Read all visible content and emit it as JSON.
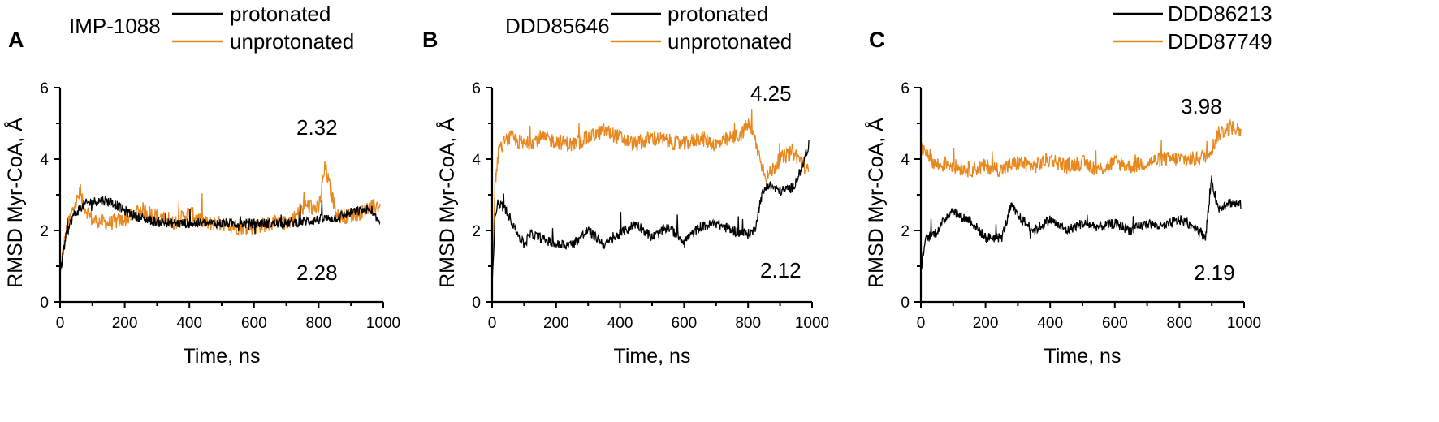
{
  "colors": {
    "series_a": "#000000",
    "series_b": "#E8871E",
    "axis": "#000000"
  },
  "chart_data": [
    {
      "type": "line",
      "panel_letter": "A",
      "compound": "IMP-1088",
      "xlabel": "Time, ns",
      "ylabel": "RMSD Myr-CoA, Å",
      "xlim": [
        0,
        1000
      ],
      "ylim": [
        0,
        6
      ],
      "xticks": [
        0,
        200,
        400,
        600,
        800,
        1000
      ],
      "yticks": [
        0,
        2,
        4,
        6
      ],
      "legend": "top-right",
      "series": [
        {
          "name": "protonated",
          "color": "#000000",
          "annotation": "2.28",
          "x": [
            0,
            10,
            20,
            40,
            60,
            80,
            100,
            130,
            160,
            200,
            250,
            300,
            350,
            400,
            450,
            500,
            550,
            600,
            650,
            700,
            750,
            800,
            850,
            900,
            950,
            980
          ],
          "y": [
            0.8,
            1.4,
            1.9,
            2.4,
            2.6,
            2.75,
            2.8,
            2.85,
            2.8,
            2.55,
            2.35,
            2.25,
            2.2,
            2.2,
            2.2,
            2.2,
            2.2,
            2.2,
            2.2,
            2.2,
            2.25,
            2.3,
            2.35,
            2.5,
            2.6,
            2.3
          ]
        },
        {
          "name": "unprotonated",
          "color": "#E8871E",
          "annotation": "2.32",
          "x": [
            0,
            10,
            20,
            40,
            60,
            80,
            100,
            150,
            200,
            250,
            300,
            350,
            400,
            450,
            500,
            550,
            600,
            650,
            700,
            730,
            760,
            800,
            820,
            840,
            860,
            900,
            950,
            980
          ],
          "y": [
            0.7,
            1.5,
            2.0,
            2.6,
            3.0,
            2.6,
            2.3,
            2.2,
            2.3,
            2.6,
            2.4,
            2.2,
            2.5,
            2.2,
            2.2,
            2.1,
            2.1,
            2.2,
            2.2,
            2.4,
            2.7,
            2.6,
            3.8,
            3.0,
            2.4,
            2.4,
            2.6,
            2.7
          ]
        }
      ]
    },
    {
      "type": "line",
      "panel_letter": "B",
      "compound": "DDD85646",
      "xlabel": "Time, ns",
      "ylabel": "RMSD Myr-CoA, Å",
      "xlim": [
        0,
        1000
      ],
      "ylim": [
        0,
        6
      ],
      "xticks": [
        0,
        200,
        400,
        600,
        800,
        1000
      ],
      "yticks": [
        0,
        2,
        4,
        6
      ],
      "legend": "top-right",
      "series": [
        {
          "name": "protonated",
          "color": "#000000",
          "annotation": "2.12",
          "x": [
            0,
            10,
            20,
            40,
            60,
            80,
            100,
            120,
            150,
            200,
            250,
            300,
            350,
            400,
            450,
            500,
            550,
            600,
            650,
            700,
            750,
            800,
            820,
            840,
            860,
            900,
            940,
            970,
            990
          ],
          "y": [
            0.6,
            2.5,
            2.8,
            2.6,
            2.3,
            1.9,
            1.6,
            1.9,
            1.8,
            1.6,
            1.6,
            2.0,
            1.6,
            1.9,
            2.2,
            1.8,
            2.1,
            1.7,
            2.1,
            2.2,
            2.0,
            1.9,
            2.0,
            2.9,
            3.3,
            3.1,
            3.2,
            3.8,
            4.4
          ]
        },
        {
          "name": "unprotonated",
          "color": "#E8871E",
          "annotation": "4.25",
          "x": [
            0,
            10,
            20,
            40,
            60,
            80,
            100,
            150,
            200,
            250,
            300,
            350,
            400,
            450,
            500,
            550,
            600,
            650,
            700,
            750,
            780,
            800,
            820,
            840,
            860,
            900,
            940,
            970,
            990
          ],
          "y": [
            1.0,
            3.4,
            4.2,
            4.5,
            4.6,
            4.5,
            4.4,
            4.6,
            4.5,
            4.4,
            4.6,
            4.8,
            4.6,
            4.4,
            4.6,
            4.5,
            4.4,
            4.6,
            4.4,
            4.6,
            4.7,
            5.0,
            4.6,
            3.9,
            3.5,
            4.0,
            4.2,
            3.9,
            3.6
          ]
        }
      ]
    },
    {
      "type": "line",
      "panel_letter": "C",
      "compound": "",
      "xlabel": "Time, ns",
      "ylabel": "RMSD Myr-CoA, Å",
      "xlim": [
        0,
        1000
      ],
      "ylim": [
        0,
        6
      ],
      "xticks": [
        0,
        200,
        400,
        600,
        800,
        1000
      ],
      "yticks": [
        0,
        2,
        4,
        6
      ],
      "legend": "top-right",
      "series": [
        {
          "name": "DDD86213",
          "color": "#000000",
          "annotation": "2.19",
          "x": [
            0,
            10,
            20,
            40,
            60,
            80,
            100,
            120,
            150,
            200,
            250,
            280,
            300,
            350,
            400,
            450,
            500,
            550,
            600,
            650,
            700,
            750,
            800,
            850,
            880,
            900,
            920,
            950,
            990
          ],
          "y": [
            0.8,
            1.6,
            1.8,
            1.9,
            2.1,
            2.4,
            2.6,
            2.4,
            2.3,
            1.8,
            1.8,
            2.7,
            2.4,
            2.0,
            2.3,
            2.0,
            2.2,
            2.1,
            2.2,
            2.0,
            2.2,
            2.1,
            2.3,
            2.1,
            1.8,
            3.4,
            2.6,
            2.8,
            2.7
          ]
        },
        {
          "name": "DDD87749",
          "color": "#E8871E",
          "annotation": "3.98",
          "x": [
            0,
            10,
            20,
            40,
            60,
            80,
            100,
            150,
            200,
            250,
            300,
            350,
            400,
            450,
            500,
            550,
            600,
            650,
            700,
            750,
            800,
            850,
            880,
            900,
            920,
            940,
            960,
            990
          ],
          "y": [
            4.2,
            4.3,
            4.2,
            3.9,
            3.8,
            3.9,
            3.8,
            3.7,
            3.8,
            3.7,
            3.9,
            3.8,
            4.0,
            3.8,
            3.9,
            3.7,
            3.9,
            3.8,
            3.9,
            4.0,
            4.0,
            4.0,
            4.1,
            4.3,
            4.7,
            4.8,
            4.9,
            4.8
          ]
        }
      ]
    }
  ]
}
